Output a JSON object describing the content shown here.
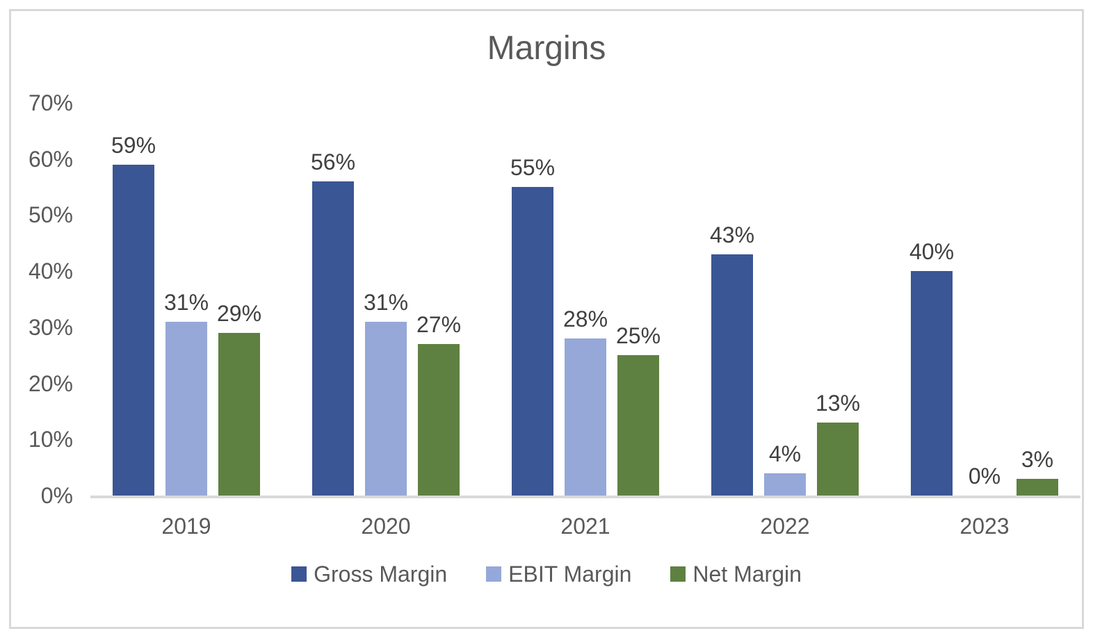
{
  "chart_data": {
    "type": "bar",
    "title": "Margins",
    "categories": [
      "2019",
      "2020",
      "2021",
      "2022",
      "2023"
    ],
    "series": [
      {
        "name": "Gross Margin",
        "color": "#3A5694",
        "values": [
          59,
          56,
          55,
          43,
          40
        ],
        "labels": [
          "59%",
          "56%",
          "55%",
          "43%",
          "40%"
        ]
      },
      {
        "name": "EBIT Margin",
        "color": "#95A8D8",
        "values": [
          31,
          31,
          28,
          4,
          0
        ],
        "labels": [
          "31%",
          "31%",
          "28%",
          "4%",
          "0%"
        ]
      },
      {
        "name": "Net Margin",
        "color": "#5E8142",
        "values": [
          29,
          27,
          25,
          13,
          3
        ],
        "labels": [
          "29%",
          "27%",
          "25%",
          "13%",
          "3%"
        ]
      }
    ],
    "xlabel": "",
    "ylabel": "",
    "ylim": [
      0,
      70
    ],
    "yticks": [
      {
        "value": 70,
        "label": "70%"
      },
      {
        "value": 60,
        "label": "60%"
      },
      {
        "value": 50,
        "label": "50%"
      },
      {
        "value": 40,
        "label": "40%"
      },
      {
        "value": 30,
        "label": "30%"
      },
      {
        "value": 20,
        "label": "20%"
      },
      {
        "value": 10,
        "label": "10%"
      },
      {
        "value": 0,
        "label": "0%"
      }
    ],
    "grid": false,
    "legend_position": "bottom"
  }
}
